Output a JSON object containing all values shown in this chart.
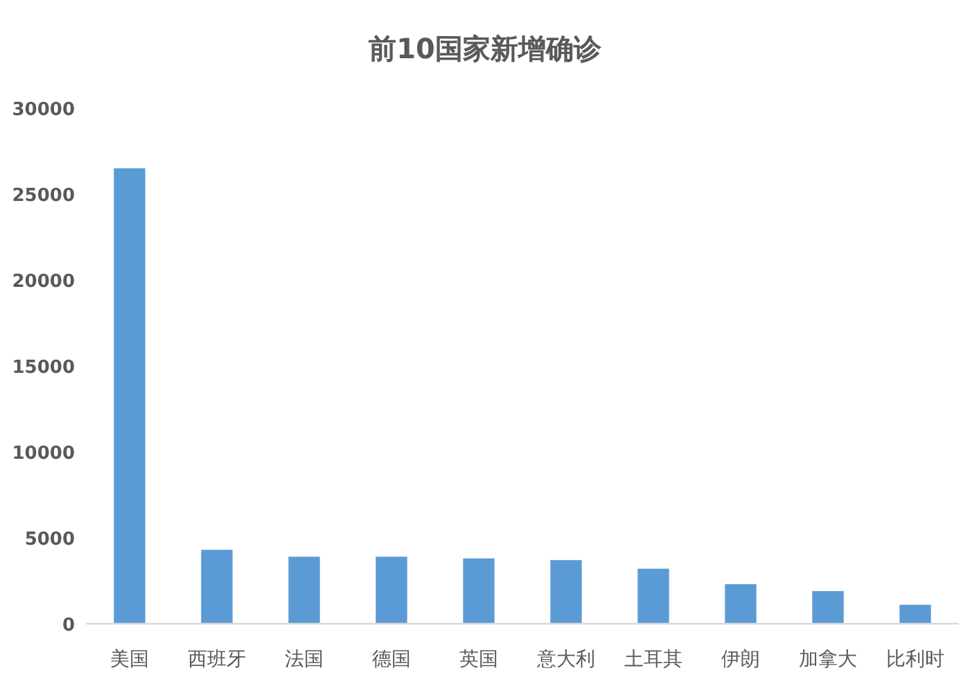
{
  "chart_data": {
    "type": "bar",
    "title": "前10国家新增确诊",
    "categories": [
      "美国",
      "西班牙",
      "法国",
      "德国",
      "英国",
      "意大利",
      "土耳其",
      "伊朗",
      "加拿大",
      "比利时"
    ],
    "values": [
      26500,
      4300,
      3900,
      3900,
      3800,
      3700,
      3200,
      2300,
      1900,
      1100
    ],
    "color": "#5b9bd5",
    "ylim": [
      0,
      30000
    ],
    "yticks": [
      0,
      5000,
      10000,
      15000,
      20000,
      25000,
      30000
    ]
  }
}
